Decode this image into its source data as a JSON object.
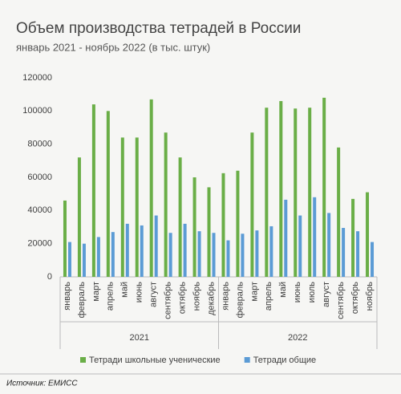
{
  "chart_data": {
    "type": "bar",
    "title": "Объем производства тетрадей в России",
    "subtitle": "январь 2021 - ноябрь 2022 (в тыс. штук)",
    "groups": [
      {
        "label": "2021",
        "categories": [
          "январь",
          "февраль",
          "март",
          "апрель",
          "май",
          "июнь",
          "август",
          "сентябрь",
          "октябрь",
          "ноябрь",
          "декабрь"
        ]
      },
      {
        "label": "2022",
        "categories": [
          "январь",
          "февраль",
          "март",
          "апрель",
          "май",
          "июнь",
          "июль",
          "август",
          "сентябрь",
          "октябрь",
          "ноябрь"
        ]
      }
    ],
    "series": [
      {
        "name": "Тетради школьные ученические",
        "color": "#6aae47",
        "values": [
          46000,
          72000,
          104000,
          100000,
          84000,
          84000,
          107000,
          87000,
          72000,
          60000,
          54000,
          62500,
          64000,
          87000,
          102000,
          106000,
          101500,
          102000,
          108000,
          78000,
          47000,
          51000
        ]
      },
      {
        "name": "Тетради общие",
        "color": "#5b9bd5",
        "values": [
          21000,
          20000,
          24000,
          27000,
          32000,
          31000,
          37000,
          26500,
          32000,
          27500,
          26500,
          22000,
          26000,
          28000,
          30500,
          46500,
          37000,
          48000,
          38500,
          29500,
          27500,
          21000
        ]
      }
    ],
    "ylim": [
      0,
      120000
    ],
    "yticks": [
      0,
      20000,
      40000,
      60000,
      80000,
      100000,
      120000
    ],
    "grid": false,
    "legend": "bottom",
    "source": "Источник: ЕМИСС"
  }
}
